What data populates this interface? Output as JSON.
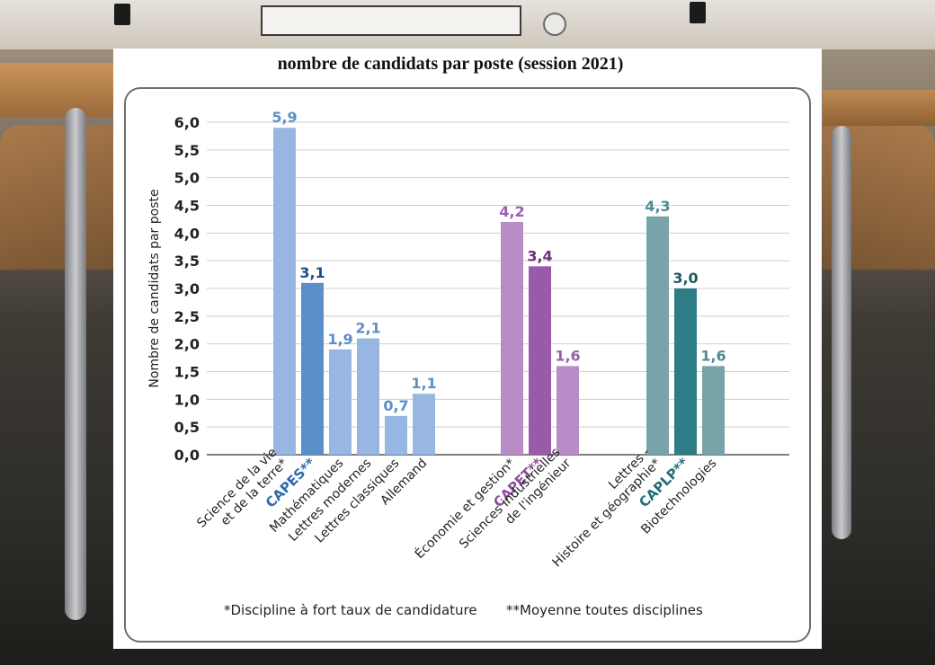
{
  "chart_data": {
    "type": "bar",
    "title": "nombre de candidats par poste (session 2021)",
    "ylabel": "Nombre de candidats par poste",
    "ylim": [
      0,
      6
    ],
    "yticks": [
      "0,0",
      "0,5",
      "1,0",
      "1,5",
      "2,0",
      "2,5",
      "3,0",
      "3,5",
      "4,0",
      "4,5",
      "5,0",
      "5,5",
      "6,0"
    ],
    "grid": true,
    "groups": [
      {
        "name": "CAPES**",
        "color": "#2f6aa8",
        "bars": [
          {
            "label": [
              "Science de la vie",
              "et de la terre*"
            ],
            "value": 5.9,
            "value_label": "5,9",
            "color": "#97b7e2",
            "label_color": "#5b8fca",
            "highlight": false
          },
          {
            "label": [
              "CAPES**"
            ],
            "value": 3.1,
            "value_label": "3,1",
            "color": "#5b8fca",
            "label_color": "#1f4f86",
            "highlight": true
          },
          {
            "label": [
              "Mathématiques"
            ],
            "value": 1.9,
            "value_label": "1,9",
            "color": "#97b7e2",
            "label_color": "#5b8fca",
            "highlight": false
          },
          {
            "label": [
              "Lettres modernes"
            ],
            "value": 2.1,
            "value_label": "2,1",
            "color": "#97b7e2",
            "label_color": "#5b8fca",
            "highlight": false
          },
          {
            "label": [
              "Lettres classiques"
            ],
            "value": 0.7,
            "value_label": "0,7",
            "color": "#97b7e2",
            "label_color": "#5b8fca",
            "highlight": false
          },
          {
            "label": [
              "Allemand"
            ],
            "value": 1.1,
            "value_label": "1,1",
            "color": "#97b7e2",
            "label_color": "#5b8fca",
            "highlight": false
          }
        ]
      },
      {
        "name": "CAPET**",
        "color": "#8e4a9c",
        "bars": [
          {
            "label": [
              "Économie et gestion*"
            ],
            "value": 4.2,
            "value_label": "4,2",
            "color": "#b98cc8",
            "label_color": "#9c5fb0",
            "highlight": false
          },
          {
            "label": [
              "CAPET**"
            ],
            "value": 3.4,
            "value_label": "3,4",
            "color": "#9a5aaa",
            "label_color": "#6e2f80",
            "highlight": true
          },
          {
            "label": [
              "Sciences industrielles",
              "de l'ingénieur"
            ],
            "value": 1.6,
            "value_label": "1,6",
            "color": "#b98cc8",
            "label_color": "#9c5fb0",
            "highlight": false
          }
        ]
      },
      {
        "name": "CAPLP**",
        "color": "#1f6e78",
        "bars": [
          {
            "label": [
              "Lettres -",
              "Histoire et géographie*"
            ],
            "value": 4.3,
            "value_label": "4,3",
            "color": "#78a3a8",
            "label_color": "#4f8a91",
            "highlight": false
          },
          {
            "label": [
              "CAPLP**"
            ],
            "value": 3.0,
            "value_label": "3,0",
            "color": "#2e7c86",
            "label_color": "#1d5960",
            "highlight": true
          },
          {
            "label": [
              "Biotechnologies"
            ],
            "value": 1.6,
            "value_label": "1,6",
            "color": "#78a3a8",
            "label_color": "#4f8a91",
            "highlight": false
          }
        ]
      }
    ],
    "footnotes": [
      "*Discipline à fort taux de candidature",
      "**Moyenne toutes disciplines"
    ]
  }
}
